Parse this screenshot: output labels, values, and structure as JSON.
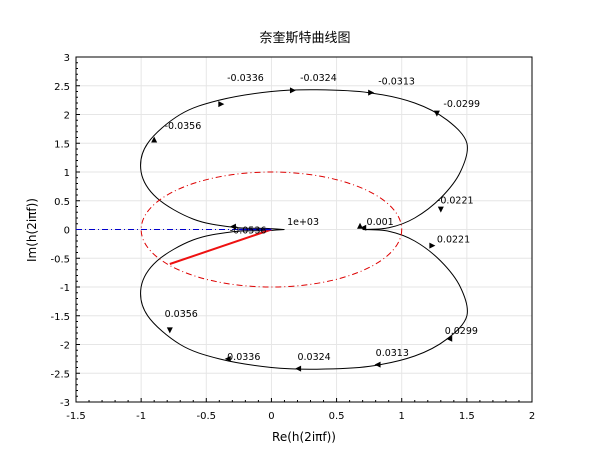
{
  "chart_data": {
    "type": "line",
    "title": "奈奎斯特曲线图",
    "xlabel": "Re(h(2iπf))",
    "ylabel": "Im(h(2iπf))",
    "xlim": [
      -1.5,
      2
    ],
    "ylim": [
      -3,
      3
    ],
    "xticks": [
      "-1.5",
      "-1",
      "-0.5",
      "0",
      "0.5",
      "1",
      "1.5",
      "2"
    ],
    "yticks": [
      "-3",
      "-2.5",
      "-2",
      "-1.5",
      "-1",
      "-0.5",
      "0",
      "0.5",
      "1",
      "1.5",
      "2",
      "2.5",
      "3"
    ],
    "grid": true,
    "series": [
      {
        "role": "nyquist-upper",
        "color": "#000000",
        "points": [
          [
            0.1,
            0.0
          ],
          [
            -0.05,
            0.02
          ],
          [
            -0.3,
            0.04
          ],
          [
            -0.6,
            0.18
          ],
          [
            -0.88,
            0.55
          ],
          [
            -1.0,
            1.0
          ],
          [
            -0.95,
            1.5
          ],
          [
            -0.7,
            2.0
          ],
          [
            -0.4,
            2.25
          ],
          [
            0.0,
            2.4
          ],
          [
            0.35,
            2.43
          ],
          [
            0.75,
            2.38
          ],
          [
            1.1,
            2.2
          ],
          [
            1.35,
            1.9
          ],
          [
            1.5,
            1.5
          ],
          [
            1.45,
            1.0
          ],
          [
            1.3,
            0.55
          ],
          [
            1.1,
            0.2
          ],
          [
            0.9,
            0.03
          ],
          [
            0.7,
            0.0
          ]
        ]
      },
      {
        "role": "nyquist-lower",
        "color": "#000000",
        "points": [
          [
            0.1,
            0.0
          ],
          [
            -0.05,
            -0.02
          ],
          [
            -0.3,
            -0.04
          ],
          [
            -0.6,
            -0.18
          ],
          [
            -0.88,
            -0.55
          ],
          [
            -1.0,
            -1.0
          ],
          [
            -0.95,
            -1.5
          ],
          [
            -0.7,
            -2.0
          ],
          [
            -0.4,
            -2.25
          ],
          [
            0.0,
            -2.4
          ],
          [
            0.35,
            -2.43
          ],
          [
            0.75,
            -2.38
          ],
          [
            1.1,
            -2.2
          ],
          [
            1.35,
            -1.9
          ],
          [
            1.5,
            -1.5
          ],
          [
            1.45,
            -1.0
          ],
          [
            1.3,
            -0.55
          ],
          [
            1.1,
            -0.2
          ],
          [
            0.9,
            -0.03
          ],
          [
            0.7,
            0.0
          ]
        ]
      },
      {
        "role": "unit-circle",
        "color": "#dd0000",
        "center": [
          0,
          0
        ],
        "radius": 1
      },
      {
        "role": "negative-real-axis",
        "color": "#0000cc",
        "points": [
          [
            -1.5,
            0
          ],
          [
            0,
            0
          ]
        ]
      },
      {
        "role": "margin-vector",
        "color": "#ee1111",
        "points": [
          [
            0,
            0
          ],
          [
            -0.78,
            -0.6
          ]
        ]
      }
    ],
    "annotations": [
      {
        "text": "1e+03",
        "x": 0.12,
        "y": 0.08
      },
      {
        "text": "0.001",
        "x": 0.73,
        "y": 0.08
      },
      {
        "text": "-0.0536",
        "x": -0.32,
        "y": -0.07
      },
      {
        "text": "-0.0356",
        "x": -0.82,
        "y": 1.75
      },
      {
        "text": "-0.0336",
        "x": -0.34,
        "y": 2.58
      },
      {
        "text": "-0.0324",
        "x": 0.22,
        "y": 2.58
      },
      {
        "text": "-0.0313",
        "x": 0.82,
        "y": 2.52
      },
      {
        "text": "-0.0299",
        "x": 1.32,
        "y": 2.13
      },
      {
        "text": "-0.0221",
        "x": 1.27,
        "y": 0.45
      },
      {
        "text": "0.0221",
        "x": 1.27,
        "y": -0.23
      },
      {
        "text": "0.0356",
        "x": -0.82,
        "y": -1.52
      },
      {
        "text": "0.0336",
        "x": -0.34,
        "y": -2.27
      },
      {
        "text": "0.0324",
        "x": 0.2,
        "y": -2.27
      },
      {
        "text": "0.0313",
        "x": 0.8,
        "y": -2.2
      },
      {
        "text": "0.0299",
        "x": 1.33,
        "y": -1.82
      }
    ],
    "arrows": [
      {
        "x": -0.9,
        "y": 1.53,
        "dir": "up"
      },
      {
        "x": -0.4,
        "y": 2.18,
        "dir": "right"
      },
      {
        "x": 0.15,
        "y": 2.42,
        "dir": "right"
      },
      {
        "x": 0.75,
        "y": 2.38,
        "dir": "right"
      },
      {
        "x": 1.27,
        "y": 2.05,
        "dir": "down"
      },
      {
        "x": 1.3,
        "y": 0.38,
        "dir": "down"
      },
      {
        "x": 0.72,
        "y": 0.03,
        "dir": "left"
      },
      {
        "x": 0.68,
        "y": 0.03,
        "dir": "up"
      },
      {
        "x": -0.28,
        "y": 0.05,
        "dir": "left"
      },
      {
        "x": 1.22,
        "y": -0.28,
        "dir": "right"
      },
      {
        "x": -0.78,
        "y": -1.72,
        "dir": "down"
      },
      {
        "x": -0.32,
        "y": -2.25,
        "dir": "left"
      },
      {
        "x": 0.22,
        "y": -2.42,
        "dir": "left"
      },
      {
        "x": 0.83,
        "y": -2.35,
        "dir": "left"
      },
      {
        "x": 1.38,
        "y": -1.9,
        "dir": "left"
      }
    ]
  }
}
